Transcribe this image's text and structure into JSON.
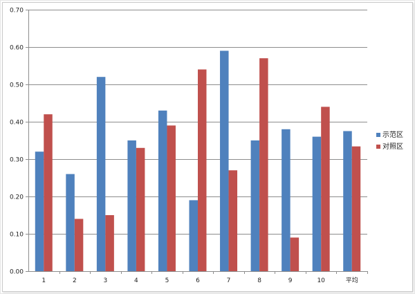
{
  "chart_data": {
    "type": "bar",
    "categories": [
      "1",
      "2",
      "3",
      "4",
      "5",
      "6",
      "7",
      "8",
      "9",
      "10",
      "平均"
    ],
    "series": [
      {
        "name": "示范区",
        "color": "#4f81bd",
        "values": [
          0.32,
          0.26,
          0.52,
          0.35,
          0.43,
          0.19,
          0.59,
          0.35,
          0.38,
          0.36,
          0.375
        ]
      },
      {
        "name": "对照区",
        "color": "#c0504d",
        "values": [
          0.42,
          0.14,
          0.15,
          0.33,
          0.39,
          0.54,
          0.27,
          0.57,
          0.09,
          0.44,
          0.334
        ]
      }
    ],
    "ylim": [
      0,
      0.7
    ],
    "yticks": [
      "0.00",
      "0.10",
      "0.20",
      "0.30",
      "0.40",
      "0.50",
      "0.60",
      "0.70"
    ],
    "ytick_values": [
      0,
      0.1,
      0.2,
      0.3,
      0.4,
      0.5,
      0.6,
      0.7
    ],
    "grid": true,
    "legend": "right"
  }
}
